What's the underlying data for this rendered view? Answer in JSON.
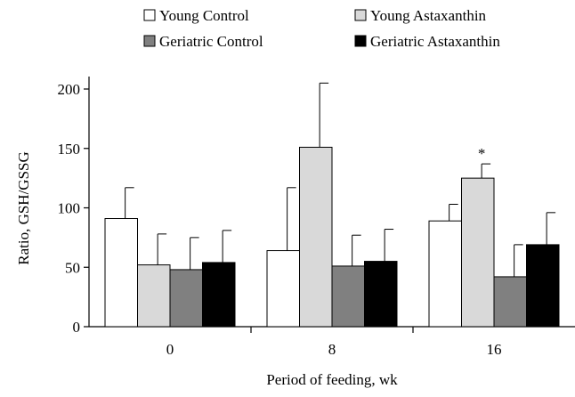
{
  "chart_data": {
    "type": "bar",
    "title": "",
    "xlabel": "Period of feeding, wk",
    "ylabel": "Ratio, GSH/GSSG",
    "categories": [
      "0",
      "8",
      "16"
    ],
    "ylim": [
      0,
      200
    ],
    "yticks": [
      "0",
      "50",
      "100",
      "150",
      "200"
    ],
    "grid": false,
    "legend": "top",
    "series": [
      {
        "name": "Young Control",
        "color": "#ffffff",
        "values": [
          91,
          64,
          89
        ],
        "errors": [
          26,
          53,
          14
        ]
      },
      {
        "name": "Young Astaxanthin",
        "color": "#d9d9d9",
        "values": [
          52,
          151,
          125
        ],
        "errors": [
          26,
          54,
          12
        ]
      },
      {
        "name": "Geriatric Control",
        "color": "#808080",
        "values": [
          48,
          51,
          42
        ],
        "errors": [
          27,
          26,
          27
        ]
      },
      {
        "name": "Geriatric Astaxanthin",
        "color": "#000000",
        "values": [
          54,
          55,
          69
        ],
        "errors": [
          27,
          27,
          27
        ]
      }
    ],
    "annotations": [
      {
        "text": "*",
        "series": 1,
        "category": 2
      }
    ]
  }
}
